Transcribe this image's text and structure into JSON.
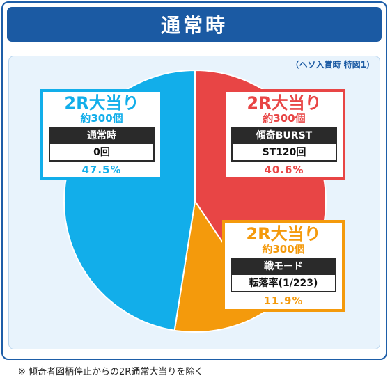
{
  "header": {
    "title": "通常時"
  },
  "note_top": "（ヘソ入賞時 特図1）",
  "footer_note": "※ 傾奇者図柄停止からの2R通常大当りを除く",
  "colors": {
    "blue": "#12aeea",
    "red": "#e84545",
    "orange": "#f49a0c",
    "header": "#1b5aa3"
  },
  "chart_data": {
    "type": "pie",
    "categories": [
      "通常時",
      "傾奇BURST",
      "戦モード"
    ],
    "values": [
      47.5,
      40.6,
      11.9
    ],
    "unit": "%"
  },
  "cards": {
    "normal": {
      "head": "2R大当り",
      "sub": "約300個",
      "mode": "通常時",
      "value": "0回",
      "pct": "47.5%"
    },
    "burst": {
      "head": "2R大当り",
      "sub": "約300個",
      "mode": "傾奇BURST",
      "value": "ST120回",
      "pct": "40.6%"
    },
    "sen": {
      "head": "2R大当り",
      "sub": "約300個",
      "mode": "戦モード",
      "value": "転落率(1/223)",
      "pct": "11.9%"
    }
  }
}
